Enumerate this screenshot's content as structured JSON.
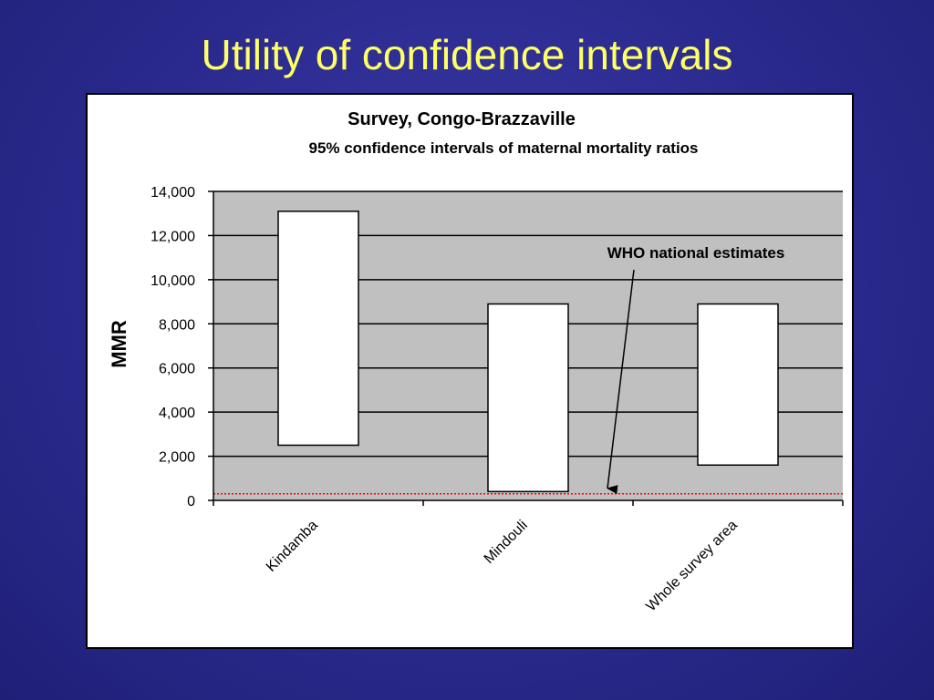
{
  "slide": {
    "title": "Utility of confidence intervals"
  },
  "colors": {
    "background": "#2a2a8e",
    "title": "#ffff66",
    "plot_area": "#c0c0c0",
    "bar_fill": "#ffffff",
    "reference_line": "#ff0000"
  },
  "chart_data": {
    "type": "bar",
    "subtype": "floating-range",
    "title": "Survey, Congo-Brazzaville",
    "subtitle": "95% confidence intervals of maternal mortality ratios",
    "xlabel": "",
    "ylabel": "MMR",
    "ylim": [
      0,
      14000
    ],
    "yticks": [
      0,
      2000,
      4000,
      6000,
      8000,
      10000,
      12000,
      14000
    ],
    "ytick_labels": [
      "0",
      "2,000",
      "4,000",
      "6,000",
      "8,000",
      "10,000",
      "12,000",
      "14,000"
    ],
    "grid": true,
    "categories": [
      "Kindamba",
      "Mindouli",
      "Whole survey area"
    ],
    "series": [
      {
        "lower": [
          2500,
          400,
          1600
        ],
        "upper": [
          13100,
          8900,
          8900
        ]
      }
    ],
    "reference_line": {
      "value": 300,
      "style": "dotted"
    },
    "annotation": {
      "text": "WHO national estimates",
      "points_to_value": 300
    }
  }
}
